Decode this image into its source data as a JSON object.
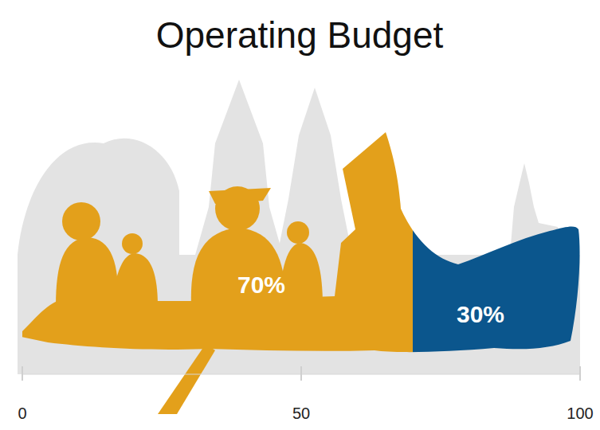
{
  "chart_data": {
    "type": "bar",
    "orientation": "horizontal",
    "stacked": true,
    "title": "Operating Budget",
    "values": [
      70,
      30
    ],
    "value_labels": [
      "70%",
      "30%"
    ],
    "data_labels": true,
    "colors": [
      "#e3a01b",
      "#0b568d"
    ],
    "xlim": [
      0,
      100
    ],
    "xticks": [
      0,
      50,
      100
    ],
    "tick_labels": "x"
  }
}
